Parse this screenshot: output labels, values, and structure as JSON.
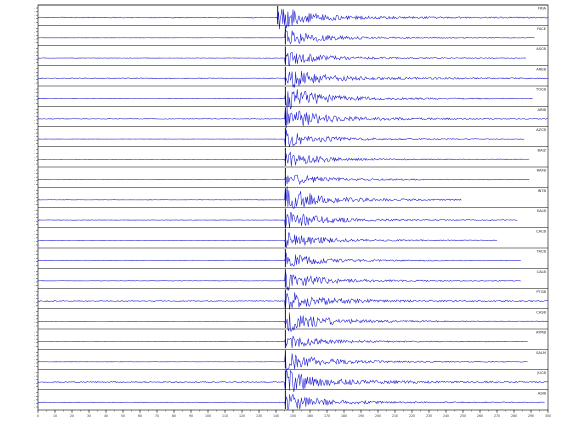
{
  "chart_data": {
    "type": "line",
    "layout": "stacked seismogram record section",
    "title": "",
    "xlabel": "",
    "ylabel": "",
    "grid": false,
    "legend": "none",
    "colors": {
      "trace": "#1414d2",
      "pick": "#000000",
      "axes": "#000000"
    },
    "x_tick_labels": [
      "0",
      "10",
      "20",
      "30",
      "40",
      "50",
      "60",
      "70",
      "80",
      "90",
      "100",
      "110",
      "120",
      "130",
      "140",
      "150",
      "160",
      "170",
      "180",
      "190",
      "200",
      "210",
      "220",
      "230",
      "240",
      "250",
      "260",
      "270",
      "280",
      "290",
      "300"
    ],
    "series": [
      {
        "name": "FRIA",
        "arrival": 141.0,
        "end": 300,
        "pre": 0.28,
        "coda": 1.2
      },
      {
        "name": "FACE",
        "arrival": 145.5,
        "end": 292,
        "pre": 0.05,
        "coda": 0.9
      },
      {
        "name": "ASCB",
        "arrival": 145.5,
        "end": 287,
        "pre": 0.14,
        "coda": 0.8
      },
      {
        "name": "AREB",
        "arrival": 145.5,
        "end": 300,
        "pre": 0.3,
        "coda": 1.1
      },
      {
        "name": "TOCB",
        "arrival": 145.5,
        "end": 291,
        "pre": 0.08,
        "coda": 1.3
      },
      {
        "name": "ARIB",
        "arrival": 145.5,
        "end": 300,
        "pre": 0.25,
        "coda": 1.2
      },
      {
        "name": "AZCB",
        "arrival": 145.5,
        "end": 286,
        "pre": 0.05,
        "coda": 0.9
      },
      {
        "name": "BAIZ",
        "arrival": 145.5,
        "end": 289,
        "pre": 0.05,
        "coda": 0.8
      },
      {
        "name": "RAFB",
        "arrival": 145.5,
        "end": 289,
        "pre": 0.05,
        "coda": 0.8
      },
      {
        "name": "INTB",
        "arrival": 145.5,
        "end": 249,
        "pre": 0.1,
        "coda": 1.3
      },
      {
        "name": "SALB",
        "arrival": 145.5,
        "end": 282,
        "pre": 0.12,
        "coda": 1.0
      },
      {
        "name": "CACB",
        "arrival": 145.5,
        "end": 270,
        "pre": 0.05,
        "coda": 0.9
      },
      {
        "name": "TACB",
        "arrival": 145.5,
        "end": 284,
        "pre": 0.05,
        "coda": 0.8
      },
      {
        "name": "CALB",
        "arrival": 145.5,
        "end": 284,
        "pre": 0.12,
        "coda": 1.0
      },
      {
        "name": "PTGB",
        "arrival": 145.5,
        "end": 300,
        "pre": 0.35,
        "coda": 1.1
      },
      {
        "name": "CASB",
        "arrival": 145.5,
        "end": 300,
        "pre": 0.05,
        "coda": 1.2
      },
      {
        "name": "AYMB",
        "arrival": 145.5,
        "end": 288,
        "pre": 0.05,
        "coda": 0.8
      },
      {
        "name": "SALM",
        "arrival": 145.5,
        "end": 288,
        "pre": 0.08,
        "coda": 1.0
      },
      {
        "name": "JUCB",
        "arrival": 145.5,
        "end": 300,
        "pre": 0.4,
        "coda": 1.2
      },
      {
        "name": "ASIB",
        "arrival": 145.5,
        "end": 298,
        "pre": 0.12,
        "coda": 1.0
      }
    ],
    "xlim": [
      0,
      300
    ],
    "ylim": [
      -1,
      1
    ]
  }
}
